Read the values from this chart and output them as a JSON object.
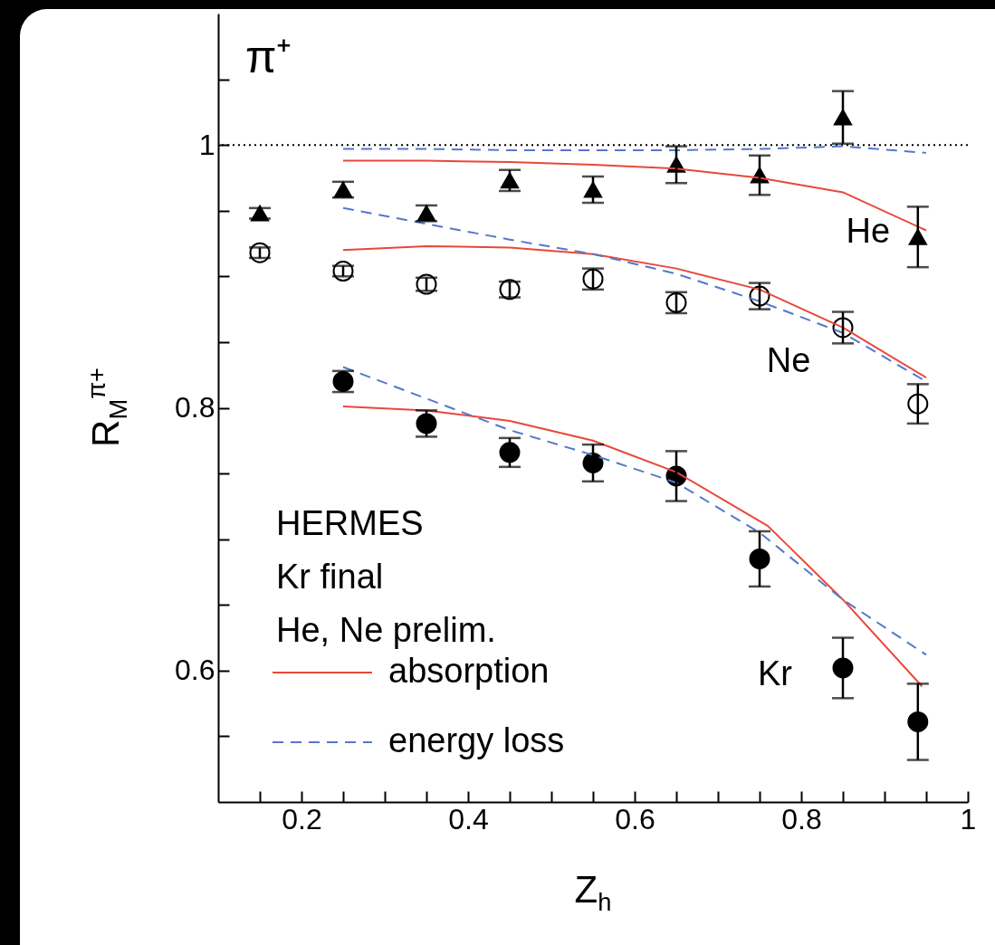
{
  "chart_data": {
    "type": "scatter",
    "title": "π⁺",
    "xlabel": "Z$_{h}$",
    "ylabel": "R$_{M}$$^{π+}$",
    "xlim": [
      0.1,
      1
    ],
    "ylim": [
      0.5,
      1.1
    ],
    "xticks": [
      {
        "value": 0.15,
        "label": null
      },
      {
        "value": 0.2,
        "label": "0.2"
      },
      {
        "value": 0.25,
        "label": null
      },
      {
        "value": 0.3,
        "label": null
      },
      {
        "value": 0.35,
        "label": null
      },
      {
        "value": 0.4,
        "label": "0.4"
      },
      {
        "value": 0.45,
        "label": null
      },
      {
        "value": 0.5,
        "label": null
      },
      {
        "value": 0.55,
        "label": null
      },
      {
        "value": 0.6,
        "label": "0.6"
      },
      {
        "value": 0.65,
        "label": null
      },
      {
        "value": 0.7,
        "label": null
      },
      {
        "value": 0.75,
        "label": null
      },
      {
        "value": 0.8,
        "label": "0.8"
      },
      {
        "value": 0.85,
        "label": null
      },
      {
        "value": 0.9,
        "label": null
      },
      {
        "value": 0.95,
        "label": null
      },
      1
    ],
    "yticks": [
      {
        "value": 0.55,
        "label": null
      },
      0.6,
      {
        "value": 0.65,
        "label": null
      },
      {
        "value": 0.7,
        "label": null
      },
      {
        "value": 0.75,
        "label": null
      },
      0.8,
      {
        "value": 0.85,
        "label": null
      },
      {
        "value": 0.9,
        "label": null
      },
      {
        "value": 0.95,
        "label": null
      },
      1,
      {
        "value": 1.05,
        "label": null
      }
    ],
    "legend": "bottom left",
    "annotations": [
      "HERMES",
      "Kr final",
      "He, Ne prelim."
    ],
    "ref_lines": [
      {
        "axis": "y",
        "value": 1,
        "color": "#000000",
        "line_style": "dotted"
      }
    ],
    "series": [
      {
        "type": "scatter",
        "name": "He",
        "color": "#000000",
        "marker": "triangle",
        "x": [
          0.15,
          0.25,
          0.35,
          0.45,
          0.55,
          0.65,
          0.75,
          0.85,
          0.94
        ],
        "values": [
          0.948,
          0.966,
          0.948,
          0.973,
          0.966,
          0.985,
          0.977,
          1.021,
          0.93
        ],
        "errors": [
          0.004,
          0.006,
          0.006,
          0.008,
          0.01,
          0.014,
          0.015,
          0.02,
          0.023
        ]
      },
      {
        "type": "scatter",
        "name": "Ne",
        "color": "#ffffff",
        "marker": "circle",
        "x": [
          0.15,
          0.25,
          0.35,
          0.45,
          0.55,
          0.65,
          0.75,
          0.85,
          0.94
        ],
        "values": [
          0.918,
          0.904,
          0.894,
          0.89,
          0.898,
          0.88,
          0.885,
          0.861,
          0.803
        ],
        "errors": [
          0.004,
          0.004,
          0.005,
          0.006,
          0.008,
          0.008,
          0.01,
          0.012,
          0.015
        ]
      },
      {
        "type": "scatter",
        "name": "Kr",
        "color": "#000000",
        "marker": "circle",
        "x": [
          0.25,
          0.35,
          0.45,
          0.55,
          0.65,
          0.75,
          0.85,
          0.94
        ],
        "values": [
          0.82,
          0.788,
          0.766,
          0.758,
          0.748,
          0.685,
          0.602,
          0.561
        ],
        "errors": [
          0.008,
          0.01,
          0.011,
          0.014,
          0.019,
          0.021,
          0.023,
          0.029
        ]
      },
      {
        "type": "line",
        "name": "absorption",
        "color": "#e8483a",
        "line_style": "solid",
        "x": [
          0.25,
          0.35,
          0.45,
          0.55,
          0.65,
          0.75,
          0.85,
          0.95
        ],
        "values": [
          0.988,
          0.988,
          0.987,
          0.985,
          0.982,
          0.975,
          0.964,
          0.935
        ]
      },
      {
        "type": "line",
        "name": "energy loss",
        "color": "#5577cc",
        "line_style": "dashed",
        "x": [
          0.25,
          0.35,
          0.45,
          0.55,
          0.65,
          0.75,
          0.85,
          0.95
        ],
        "values": [
          0.997,
          0.997,
          0.996,
          0.996,
          0.996,
          0.997,
          0.999,
          0.994
        ]
      },
      {
        "type": "line",
        "color": "#e8483a",
        "line_style": "solid",
        "x": [
          0.25,
          0.35,
          0.45,
          0.55,
          0.65,
          0.75,
          0.85,
          0.95
        ],
        "values": [
          0.92,
          0.923,
          0.922,
          0.917,
          0.906,
          0.89,
          0.861,
          0.823
        ]
      },
      {
        "type": "line",
        "color": "#5577cc",
        "line_style": "dashed",
        "x": [
          0.25,
          0.35,
          0.45,
          0.55,
          0.65,
          0.75,
          0.85,
          0.95
        ],
        "values": [
          0.952,
          0.94,
          0.928,
          0.917,
          0.902,
          0.881,
          0.857,
          0.82
        ]
      },
      {
        "type": "line",
        "color": "#e8483a",
        "line_style": "solid",
        "x": [
          0.25,
          0.35,
          0.45,
          0.55,
          0.65,
          0.76,
          0.85,
          0.945
        ],
        "values": [
          0.801,
          0.798,
          0.79,
          0.775,
          0.751,
          0.71,
          0.654,
          0.588
        ]
      },
      {
        "type": "line",
        "color": "#5577cc",
        "line_style": "dashed",
        "x": [
          0.25,
          0.35,
          0.45,
          0.55,
          0.65,
          0.75,
          0.85,
          0.95
        ],
        "values": [
          0.831,
          0.807,
          0.783,
          0.764,
          0.743,
          0.705,
          0.654,
          0.612
        ]
      }
    ]
  }
}
